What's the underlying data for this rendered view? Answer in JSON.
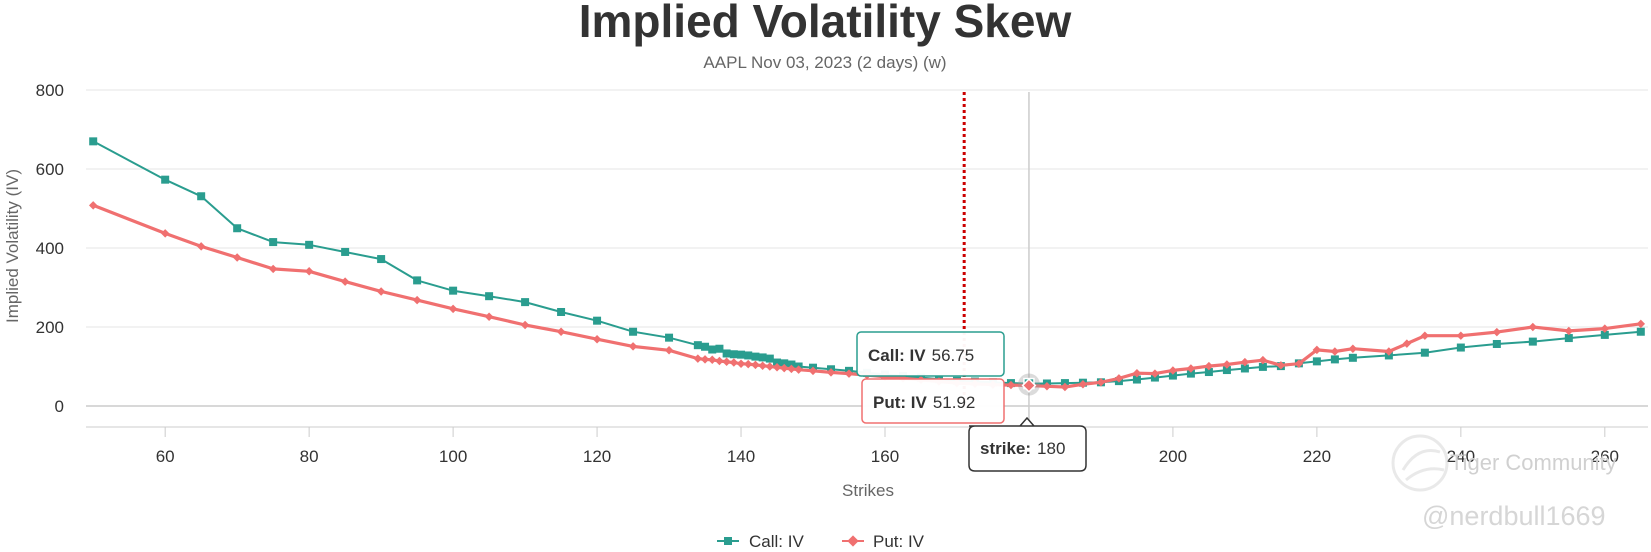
{
  "chart_data": {
    "type": "line",
    "title": "Implied Volatility Skew",
    "subtitle": "AAPL Nov 03, 2023 (2 days) (w)",
    "xlabel": "Strikes",
    "ylabel": "Implied Volatility (IV)",
    "xlim": [
      49,
      266
    ],
    "ylim": [
      0,
      800
    ],
    "x_ticks": [
      60,
      80,
      100,
      120,
      140,
      160,
      180,
      200,
      220,
      240,
      260
    ],
    "y_ticks": [
      0,
      200,
      400,
      600,
      800
    ],
    "grid": true,
    "legend": "bottom-center",
    "current_price_line": 171,
    "hover_strike": 180,
    "series": [
      {
        "name": "Call: IV",
        "color": "#2a9d8f",
        "marker": "square",
        "x": [
          50,
          60,
          65,
          70,
          75,
          80,
          85,
          90,
          95,
          100,
          105,
          110,
          115,
          120,
          125,
          130,
          134,
          135,
          136,
          137,
          138,
          139,
          140,
          141,
          142,
          143,
          144,
          145,
          146,
          147,
          148,
          150,
          152.5,
          155,
          157.5,
          160,
          162.5,
          165,
          167.5,
          170,
          172.5,
          175,
          177.5,
          180,
          182.5,
          185,
          187.5,
          190,
          192.5,
          195,
          197.5,
          200,
          202.5,
          205,
          207.5,
          210,
          212.5,
          215,
          217.5,
          220,
          222.5,
          225,
          230,
          235,
          240,
          245,
          250,
          255,
          260,
          265
        ],
        "values": [
          670,
          573,
          531,
          450,
          415,
          408,
          390,
          372,
          318,
          292,
          278,
          263,
          238,
          216,
          188,
          173,
          154,
          150,
          143,
          145,
          133,
          131,
          130,
          128,
          125,
          123,
          120,
          110,
          108,
          105,
          100,
          97,
          93,
          89,
          84,
          80,
          76,
          72,
          68,
          64,
          62,
          60,
          58,
          56.75,
          57,
          58,
          59,
          60,
          63,
          67,
          72,
          77,
          82,
          86,
          91,
          95,
          99,
          101,
          108,
          113,
          118,
          122,
          128,
          135,
          148,
          157,
          163,
          172,
          180,
          188
        ]
      },
      {
        "name": "Put: IV",
        "color": "#f07070",
        "marker": "diamond",
        "x": [
          50,
          60,
          65,
          70,
          75,
          80,
          85,
          90,
          95,
          100,
          105,
          110,
          115,
          120,
          125,
          130,
          134,
          135,
          136,
          137,
          138,
          139,
          140,
          141,
          142,
          143,
          144,
          145,
          146,
          147,
          148,
          150,
          152.5,
          155,
          157.5,
          160,
          162.5,
          165,
          167.5,
          170,
          172.5,
          175,
          177.5,
          180,
          182.5,
          185,
          187.5,
          190,
          192.5,
          195,
          197.5,
          200,
          202.5,
          205,
          207.5,
          210,
          212.5,
          215,
          217.5,
          220,
          222.5,
          225,
          230,
          232.5,
          235,
          240,
          245,
          250,
          255,
          260,
          265
        ],
        "values": [
          508,
          437,
          404,
          376,
          347,
          341,
          315,
          290,
          268,
          246,
          226,
          205,
          188,
          169,
          151,
          141,
          120,
          118,
          117,
          114,
          112,
          110,
          107,
          106,
          104,
          102,
          100,
          98,
          96,
          94,
          92,
          89,
          85,
          82,
          78,
          74,
          70,
          66,
          62,
          58,
          56,
          54,
          53,
          51.92,
          50,
          48,
          55,
          60,
          70,
          83,
          82,
          90,
          95,
          101,
          105,
          111,
          116,
          103,
          107,
          142,
          138,
          145,
          138,
          158,
          178,
          178,
          187,
          200,
          190,
          196,
          208
        ]
      }
    ],
    "tooltips": {
      "call": {
        "label": "Call: IV",
        "value": "56.75"
      },
      "put": {
        "label": "Put: IV",
        "value": "51.92"
      },
      "strike": {
        "label": "strike",
        "value": "180"
      }
    }
  },
  "watermark": {
    "text": "Tiger Community",
    "handle": "@nerdbull1669"
  }
}
